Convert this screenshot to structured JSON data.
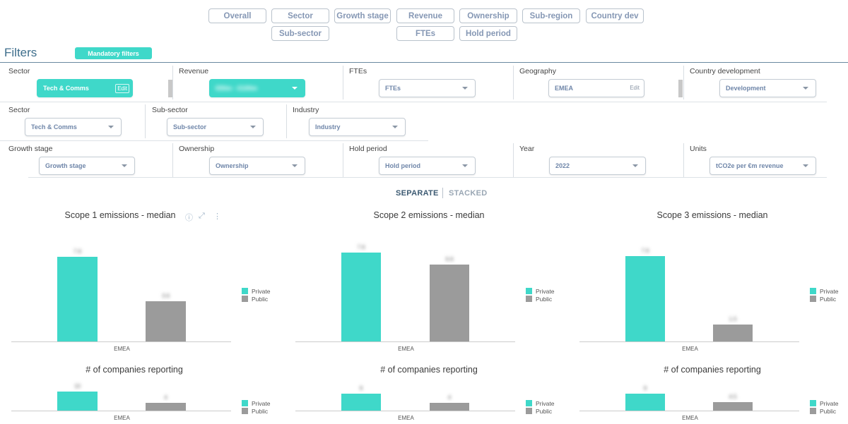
{
  "tabs": [
    "Overall",
    "Sector",
    "Growth stage",
    "Revenue",
    "Ownership",
    "Sub-region",
    "Country dev",
    "Sub-sector",
    "FTEs",
    "Hold period"
  ],
  "filters": {
    "title": "Filters",
    "mandatory_label": "Mandatory filters",
    "row1": {
      "sector_label": "Sector",
      "sector_value": "Tech & Comms",
      "edit": "Edit",
      "revenue_label": "Revenue",
      "revenue_value": "€50m - €100m",
      "ftes_label": "FTEs",
      "ftes_value": "FTEs",
      "geo_label": "Geography",
      "geo_value": "EMEA",
      "geo_edit": "Edit",
      "cdev_label": "Country development",
      "cdev_value": "Development"
    },
    "row2": {
      "sector_label": "Sector",
      "sector_value": "Tech & Comms",
      "subsector_label": "Sub-sector",
      "subsector_value": "Sub-sector",
      "industry_label": "Industry",
      "industry_value": "Industry"
    },
    "row3": {
      "growth_label": "Growth stage",
      "growth_value": "Growth stage",
      "ownership_label": "Ownership",
      "ownership_value": "Ownership",
      "hold_label": "Hold period",
      "hold_value": "Hold period",
      "year_label": "Year",
      "year_value": "2022",
      "units_label": "Units",
      "units_value": "tCO2e per €m revenue"
    }
  },
  "toggle": {
    "separate": "SEPARATE",
    "stacked": "STACKED"
  },
  "legend": {
    "private": "Private",
    "public": "Public"
  },
  "colors": {
    "private": "#3fd8c9",
    "public": "#9b9b9b",
    "accent": "#3fd8c9"
  },
  "chart_data": [
    {
      "type": "bar",
      "title": "Scope 1 emissions - median",
      "categories": [
        "EMEA"
      ],
      "series": [
        {
          "name": "Private",
          "values": [
            7.6
          ]
        },
        {
          "name": "Public",
          "values": [
            3.6
          ]
        }
      ]
    },
    {
      "type": "bar",
      "title": "Scope 2 emissions - median",
      "categories": [
        "EMEA"
      ],
      "series": [
        {
          "name": "Private",
          "values": [
            7.6
          ]
        },
        {
          "name": "Public",
          "values": [
            6.6
          ]
        }
      ]
    },
    {
      "type": "bar",
      "title": "Scope 3 emissions - median",
      "categories": [
        "EMEA"
      ],
      "series": [
        {
          "name": "Private",
          "values": [
            7.6
          ]
        },
        {
          "name": "Public",
          "values": [
            1.5
          ]
        }
      ]
    },
    {
      "type": "bar",
      "title": "# of companies reporting",
      "categories": [
        "EMEA"
      ],
      "series": [
        {
          "name": "Private",
          "values": [
            10
          ]
        },
        {
          "name": "Public",
          "values": [
            4
          ]
        }
      ]
    },
    {
      "type": "bar",
      "title": "# of companies reporting",
      "categories": [
        "EMEA"
      ],
      "series": [
        {
          "name": "Private",
          "values": [
            9
          ]
        },
        {
          "name": "Public",
          "values": [
            4
          ]
        }
      ]
    },
    {
      "type": "bar",
      "title": "# of companies reporting",
      "categories": [
        "EMEA"
      ],
      "series": [
        {
          "name": "Private",
          "values": [
            9
          ]
        },
        {
          "name": "Public",
          "values": [
            4.5
          ]
        }
      ]
    }
  ]
}
